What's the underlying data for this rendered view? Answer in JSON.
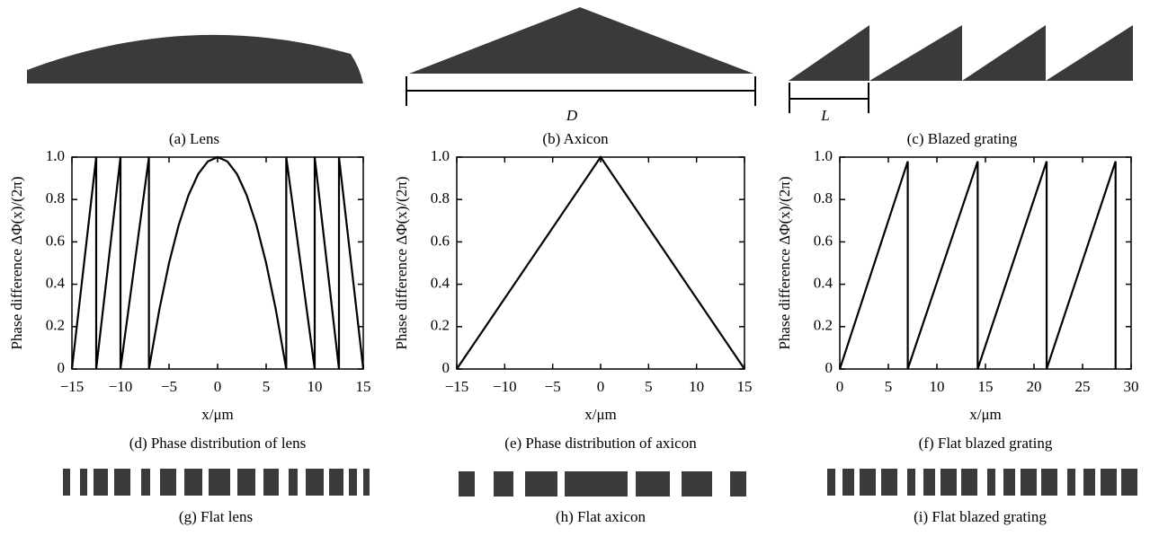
{
  "chart_data": [
    {
      "type": "line",
      "caption": "(d) Phase distribution of lens",
      "x_label": "x/μm",
      "y_label": "Phase difference ΔΦ(x)/(2π)",
      "x": [
        -15,
        -12.5,
        -12.5,
        -10,
        -10,
        -7.07,
        -7.07,
        -6,
        -5,
        -4,
        -3,
        -2,
        -1,
        0,
        1,
        2,
        3,
        4,
        5,
        6,
        7.07,
        7.07,
        10,
        10,
        12.5,
        12.5,
        15
      ],
      "series": [
        {
          "color": "#000000",
          "values": [
            0,
            1,
            0,
            1,
            0,
            1,
            0,
            0.28,
            0.5,
            0.68,
            0.82,
            0.92,
            0.98,
            1,
            0.98,
            0.92,
            0.82,
            0.68,
            0.5,
            0.28,
            0,
            1,
            0,
            1,
            0,
            1,
            0
          ]
        }
      ],
      "xlim": [
        -15,
        15
      ],
      "xticks": [
        {
          "value": -15,
          "label": "−15"
        },
        {
          "value": -10,
          "label": "−10"
        },
        {
          "value": -5,
          "label": "−5"
        },
        0,
        5,
        10,
        15
      ],
      "ylim": [
        0,
        1
      ],
      "yticks": [
        0,
        0.2,
        0.4,
        0.6,
        0.8,
        {
          "value": 1,
          "label": "1.0"
        }
      ]
    },
    {
      "type": "line",
      "caption": "(e) Phase distribution of axicon",
      "x_label": "x/μm",
      "y_label": "Phase difference ΔΦ(x)/(2π)",
      "x": [
        -15,
        0,
        15
      ],
      "series": [
        {
          "color": "#000000",
          "values": [
            0,
            1,
            0
          ]
        }
      ],
      "xlim": [
        -15,
        15
      ],
      "xticks": [
        {
          "value": -15,
          "label": "−15"
        },
        {
          "value": -10,
          "label": "−10"
        },
        {
          "value": -5,
          "label": "−5"
        },
        0,
        5,
        10,
        15
      ],
      "ylim": [
        0,
        1
      ],
      "yticks": [
        0,
        0.2,
        0.4,
        0.6,
        0.8,
        {
          "value": 1,
          "label": "1.0"
        }
      ]
    },
    {
      "type": "line",
      "caption": "(f) Flat blazed grating",
      "x_label": "x/μm",
      "y_label": "Phase difference ΔΦ(x)/(2π)",
      "x": [
        0,
        7,
        7,
        14.2,
        14.2,
        21.3,
        21.3,
        28.4,
        28.4
      ],
      "series": [
        {
          "color": "#000000",
          "values": [
            0,
            0.98,
            0,
            0.98,
            0,
            0.98,
            0,
            0.98,
            0
          ]
        }
      ],
      "xlim": [
        0,
        30
      ],
      "xticks": [
        0,
        5,
        10,
        15,
        20,
        25,
        30
      ],
      "ylim": [
        0,
        1
      ],
      "yticks": [
        0,
        0.2,
        0.4,
        0.6,
        0.8,
        {
          "value": 1,
          "label": "1.0"
        }
      ]
    }
  ],
  "diagrams": {
    "lens": "(a) Lens",
    "axicon": "(b) Axicon",
    "grating": "(c) Blazed grating",
    "D": "D",
    "L": "L",
    "flat_lens": "(g) Flat lens",
    "flat_axicon": "(h) Flat axicon",
    "flat_grating": "(i) Flat blazed grating"
  }
}
